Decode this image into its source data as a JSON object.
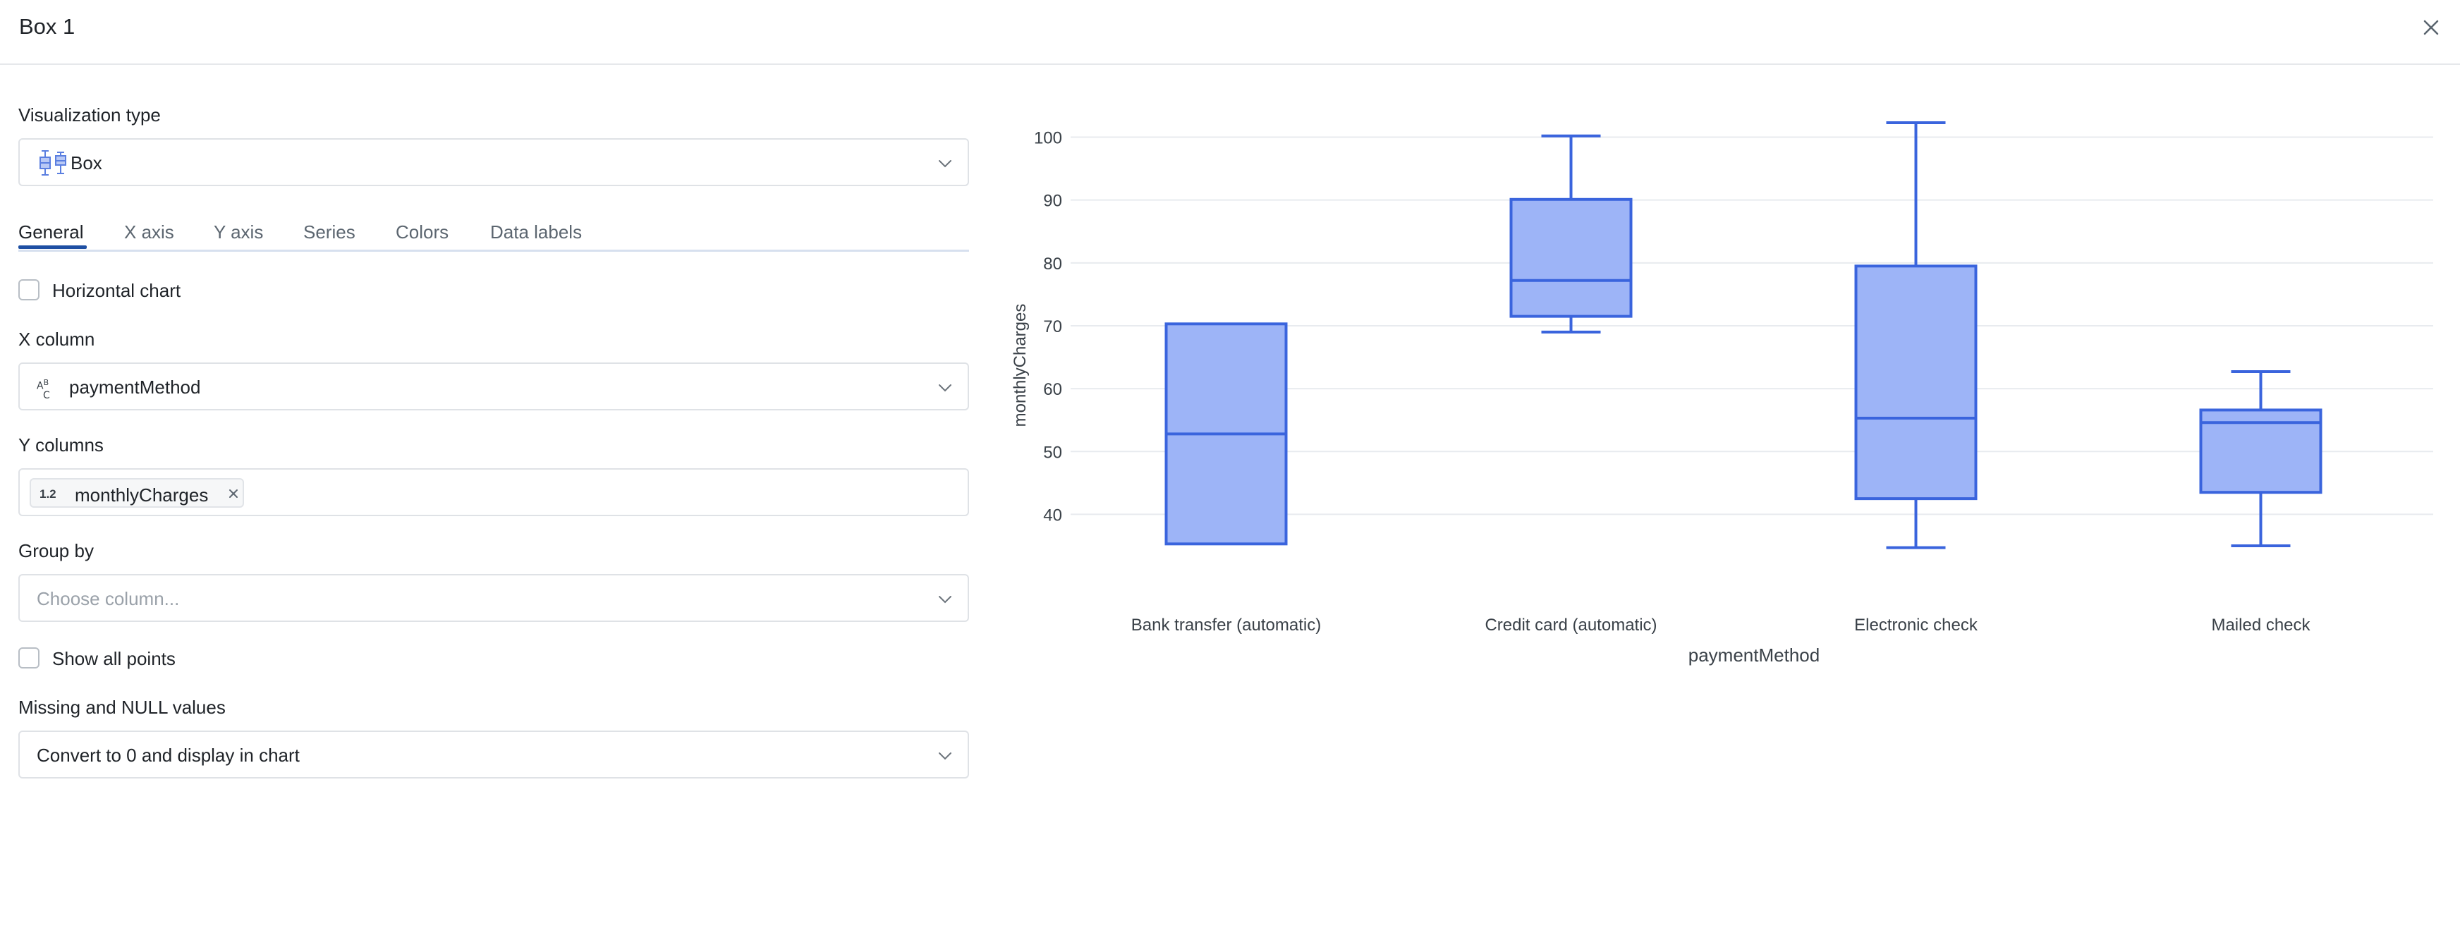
{
  "window": {
    "title": "Box 1"
  },
  "settings": {
    "viz_type_label": "Visualization type",
    "viz_type_value": "Box",
    "tabs": [
      {
        "label": "General",
        "active": true
      },
      {
        "label": "X axis",
        "active": false
      },
      {
        "label": "Y axis",
        "active": false
      },
      {
        "label": "Series",
        "active": false
      },
      {
        "label": "Colors",
        "active": false
      },
      {
        "label": "Data labels",
        "active": false
      }
    ],
    "horizontal_chart_label": "Horizontal chart",
    "horizontal_chart_checked": false,
    "x_column_label": "X column",
    "x_column_type_icon": "string-type-icon",
    "x_column_value": "paymentMethod",
    "y_columns_label": "Y columns",
    "y_column_chip_type": "1.2",
    "y_column_chip_label": "monthlyCharges",
    "group_by_label": "Group by",
    "group_by_placeholder": "Choose column...",
    "show_all_points_label": "Show all points",
    "show_all_points_checked": false,
    "missing_values_label": "Missing and NULL values",
    "missing_values_value": "Convert to 0 and display in chart"
  },
  "colors": {
    "accent": "#1e4fa3",
    "box_fill": "#9db4f7",
    "box_stroke": "#3a64dd",
    "grid": "#e8ebef"
  },
  "chart_data": {
    "type": "box",
    "xlabel": "paymentMethod",
    "ylabel": "monthlyCharges",
    "yticks": [
      40,
      50,
      60,
      70,
      80,
      90,
      100
    ],
    "categories": [
      "Bank transfer (automatic)",
      "Credit card (automatic)",
      "Electronic check",
      "Mailed check"
    ],
    "boxes": [
      {
        "min": 35.3,
        "q1": 35.3,
        "median": 52.8,
        "q3": 70.3,
        "max": 70.3
      },
      {
        "min": 69,
        "q1": 71.5,
        "median": 77.2,
        "q3": 90.1,
        "max": 100.2
      },
      {
        "min": 34.7,
        "q1": 42.5,
        "median": 55.3,
        "q3": 79.5,
        "max": 102.3
      },
      {
        "min": 35,
        "q1": 43.5,
        "median": 54.6,
        "q3": 56.6,
        "max": 62.7
      }
    ],
    "grid": true
  }
}
